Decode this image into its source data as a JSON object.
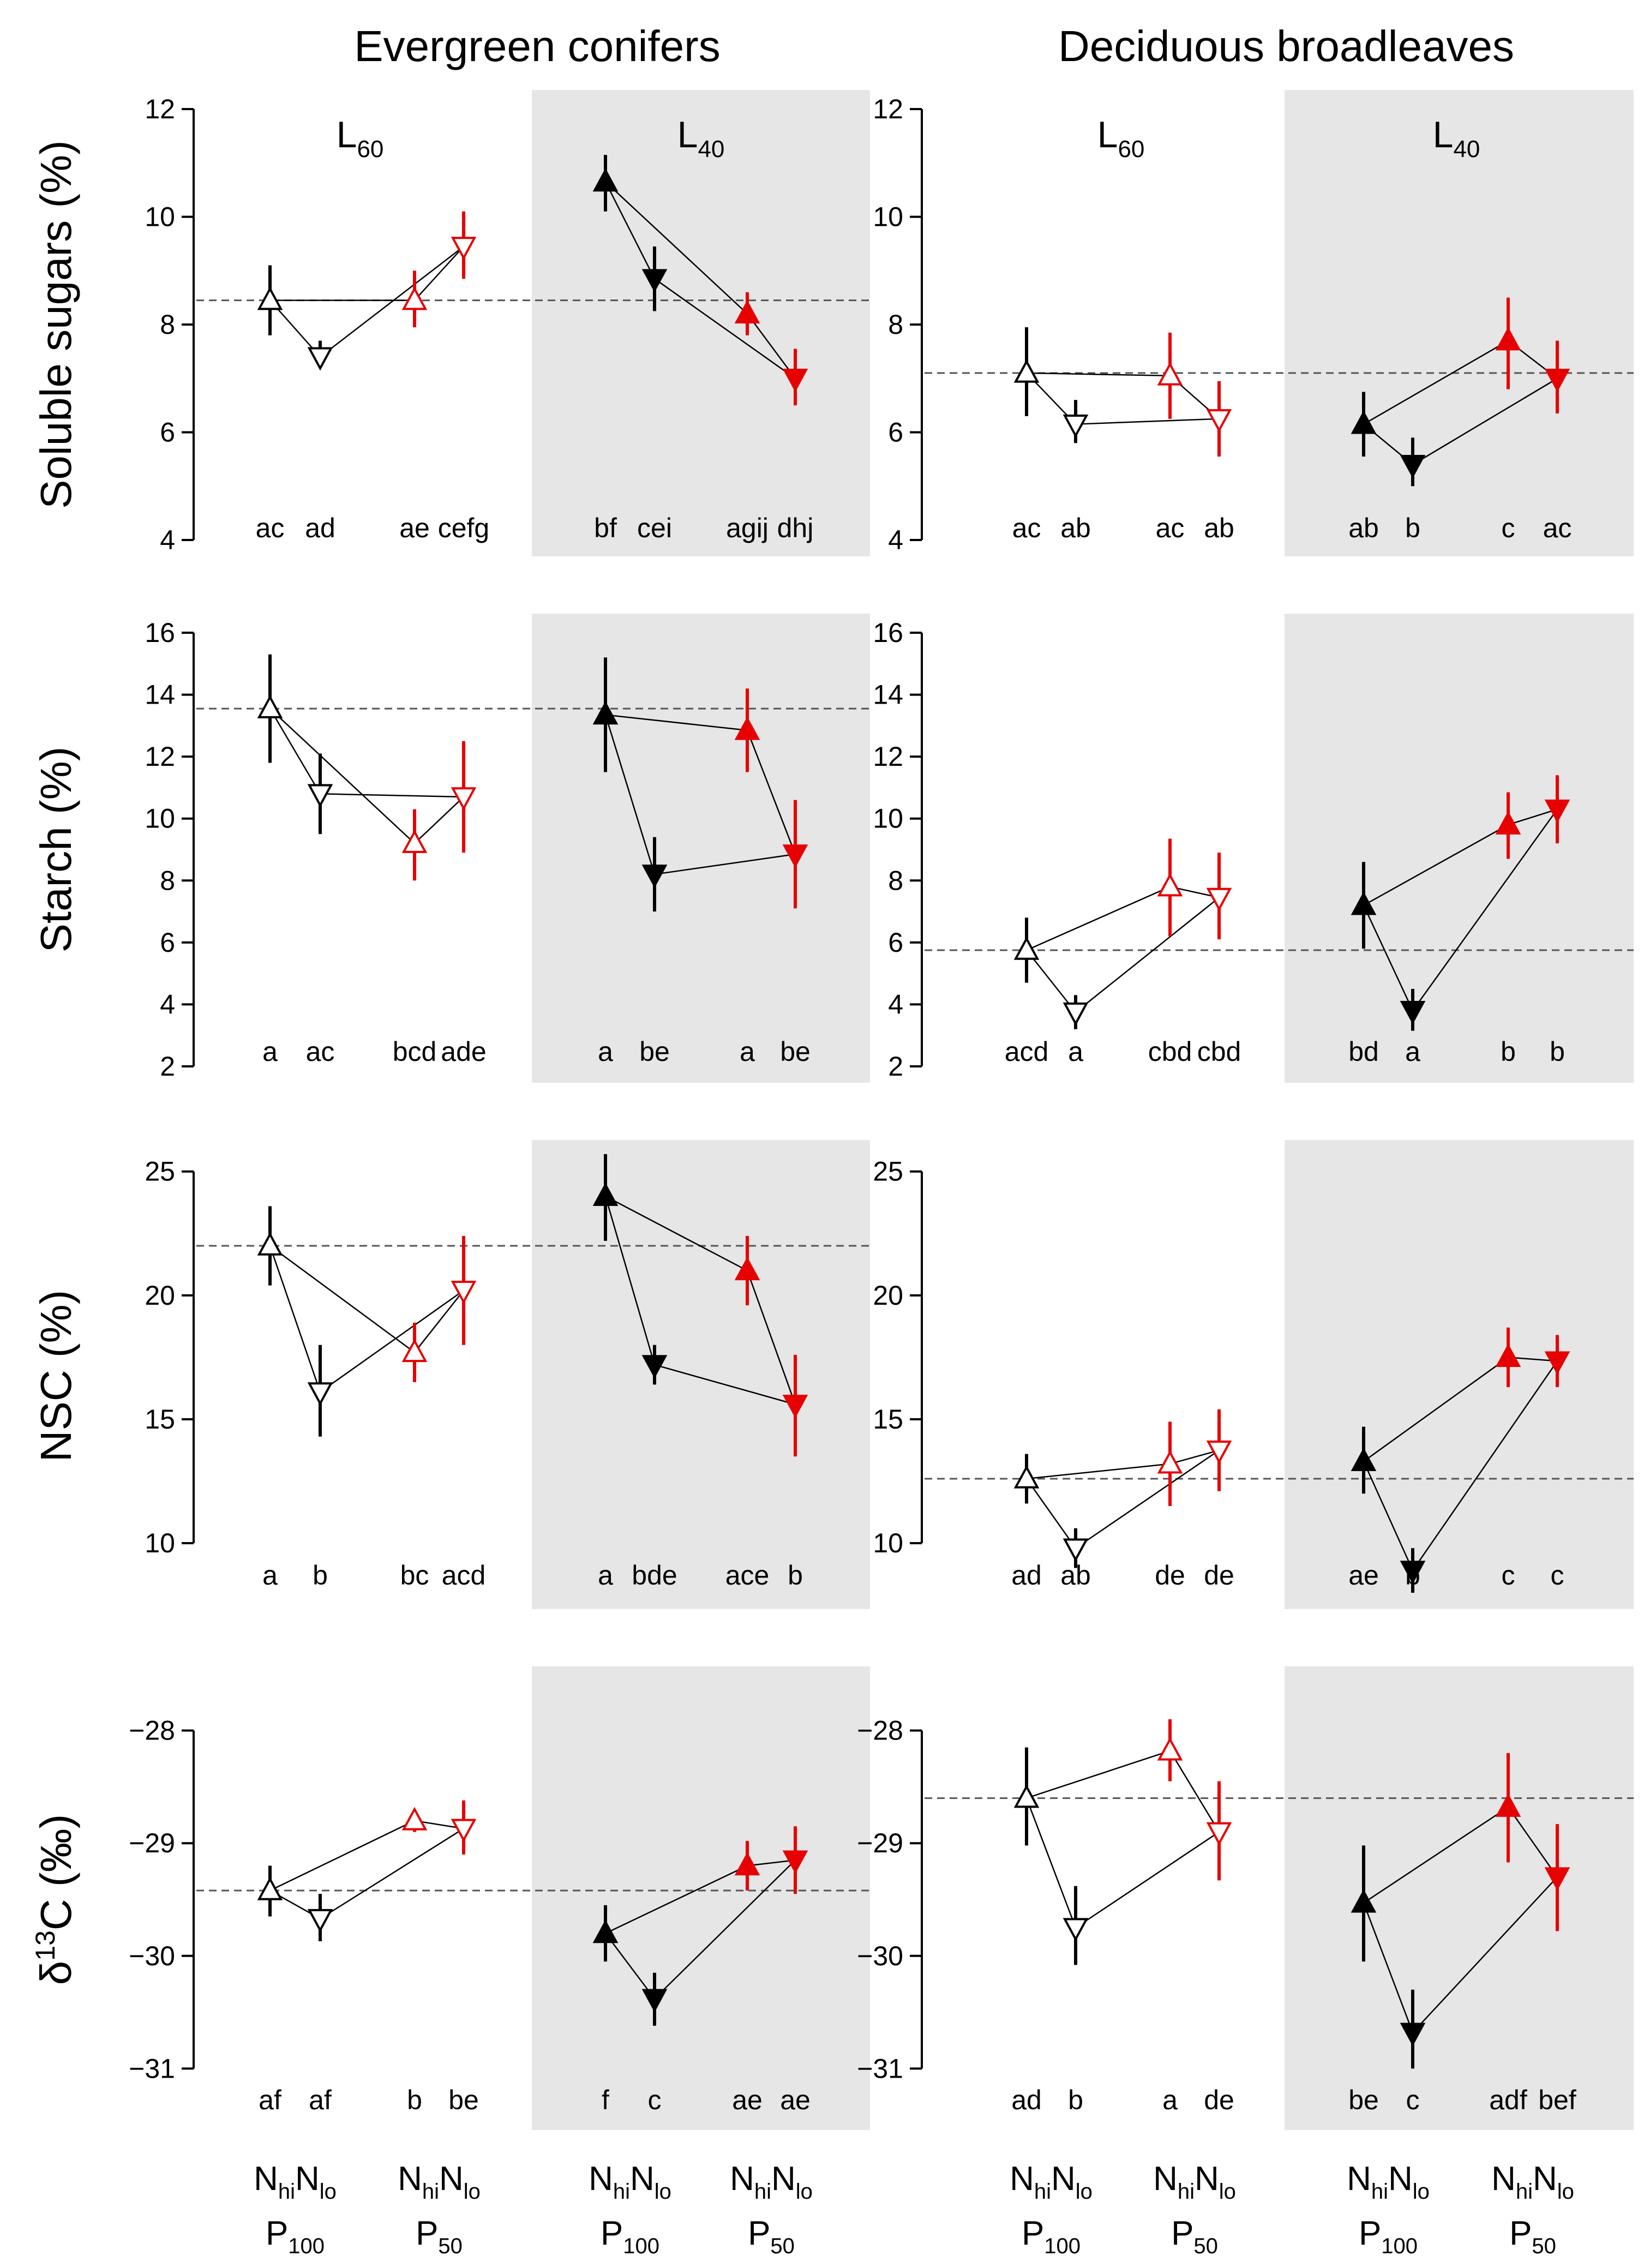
{
  "chart_data": {
    "type": "scatter",
    "columns": [
      "Evergreen conifers",
      "Deciduous broadleaves"
    ],
    "light_levels": [
      {
        "letter": "L",
        "sub": "60"
      },
      {
        "letter": "L",
        "sub": "40"
      }
    ],
    "x_axis": {
      "nitrogen": [
        {
          "letter": "N",
          "sub": "hi"
        },
        {
          "letter": "N",
          "sub": "lo"
        }
      ],
      "phosphorus": [
        {
          "letter": "P",
          "sub": "100"
        },
        {
          "letter": "P",
          "sub": "50"
        }
      ]
    },
    "colors": {
      "p100": "#000000",
      "p50": "#e60000",
      "shade": "#e6e6e6",
      "ref_line": "#555555"
    },
    "marker_legend": {
      "up_triangle": "N hi",
      "down_triangle": "N lo",
      "open_marker": "L60",
      "filled_marker": "L40",
      "black": "P100",
      "red": "P50"
    },
    "rows": [
      {
        "ylabel": "Soluble sugars (%)",
        "ylim": [
          4,
          12
        ],
        "yticks": [
          "4",
          "6",
          "8",
          "10",
          "12"
        ],
        "tick_values": [
          4,
          6,
          8,
          10,
          12
        ],
        "panels": [
          {
            "ref": 8.45,
            "groups": [
              {
                "points": [
                  {
                    "y": 8.45,
                    "lo": 7.8,
                    "hi": 9.1
                  },
                  {
                    "y": 7.4,
                    "lo": 7.2,
                    "hi": 7.7
                  },
                  {
                    "y": 8.45,
                    "lo": 7.95,
                    "hi": 9.0
                  },
                  {
                    "y": 9.45,
                    "lo": 8.85,
                    "hi": 10.1
                  }
                ],
                "letters": [
                  "ac",
                  "ad",
                  "ae",
                  "cefg"
                ]
              },
              {
                "points": [
                  {
                    "y": 10.65,
                    "lo": 10.1,
                    "hi": 11.15
                  },
                  {
                    "y": 8.85,
                    "lo": 8.25,
                    "hi": 9.45
                  },
                  {
                    "y": 8.2,
                    "lo": 7.8,
                    "hi": 8.6
                  },
                  {
                    "y": 7.0,
                    "lo": 6.5,
                    "hi": 7.55
                  }
                ],
                "letters": [
                  "bf",
                  "cei",
                  "agij",
                  "dhj"
                ]
              }
            ]
          },
          {
            "ref": 7.1,
            "groups": [
              {
                "points": [
                  {
                    "y": 7.1,
                    "lo": 6.3,
                    "hi": 7.95
                  },
                  {
                    "y": 6.15,
                    "lo": 5.8,
                    "hi": 6.6
                  },
                  {
                    "y": 7.05,
                    "lo": 6.25,
                    "hi": 7.85
                  },
                  {
                    "y": 6.25,
                    "lo": 5.55,
                    "hi": 6.95
                  }
                ],
                "letters": [
                  "ac",
                  "ab",
                  "ac",
                  "ab"
                ]
              },
              {
                "points": [
                  {
                    "y": 6.15,
                    "lo": 5.55,
                    "hi": 6.75
                  },
                  {
                    "y": 5.4,
                    "lo": 5.0,
                    "hi": 5.9
                  },
                  {
                    "y": 7.7,
                    "lo": 6.8,
                    "hi": 8.5
                  },
                  {
                    "y": 7.0,
                    "lo": 6.35,
                    "hi": 7.7
                  }
                ],
                "letters": [
                  "ab",
                  "b",
                  "c",
                  "ac"
                ]
              }
            ]
          }
        ]
      },
      {
        "ylabel": "Starch (%)",
        "ylim": [
          2,
          16
        ],
        "yticks": [
          "2",
          "4",
          "6",
          "8",
          "10",
          "12",
          "14",
          "16"
        ],
        "tick_values": [
          2,
          4,
          6,
          8,
          10,
          12,
          14,
          16
        ],
        "panels": [
          {
            "ref": 13.55,
            "groups": [
              {
                "points": [
                  {
                    "y": 13.55,
                    "lo": 11.8,
                    "hi": 15.3
                  },
                  {
                    "y": 10.8,
                    "lo": 9.5,
                    "hi": 12.1
                  },
                  {
                    "y": 9.2,
                    "lo": 8.0,
                    "hi": 10.3
                  },
                  {
                    "y": 10.7,
                    "lo": 8.9,
                    "hi": 12.5
                  }
                ],
                "letters": [
                  "a",
                  "ac",
                  "bcd",
                  "ade"
                ]
              },
              {
                "points": [
                  {
                    "y": 13.35,
                    "lo": 11.5,
                    "hi": 15.2
                  },
                  {
                    "y": 8.2,
                    "lo": 7.0,
                    "hi": 9.4
                  },
                  {
                    "y": 12.85,
                    "lo": 11.5,
                    "hi": 14.2
                  },
                  {
                    "y": 8.85,
                    "lo": 7.1,
                    "hi": 10.6
                  }
                ],
                "letters": [
                  "a",
                  "be",
                  "a",
                  "be"
                ]
              }
            ]
          },
          {
            "ref": 5.75,
            "groups": [
              {
                "points": [
                  {
                    "y": 5.75,
                    "lo": 4.7,
                    "hi": 6.8
                  },
                  {
                    "y": 3.75,
                    "lo": 3.2,
                    "hi": 4.3
                  },
                  {
                    "y": 7.8,
                    "lo": 6.2,
                    "hi": 9.35
                  },
                  {
                    "y": 7.45,
                    "lo": 6.1,
                    "hi": 8.9
                  }
                ],
                "letters": [
                  "acd",
                  "a",
                  "cbd",
                  "cbd"
                ]
              },
              {
                "points": [
                  {
                    "y": 7.2,
                    "lo": 5.8,
                    "hi": 8.6
                  },
                  {
                    "y": 3.8,
                    "lo": 3.15,
                    "hi": 4.5
                  },
                  {
                    "y": 9.8,
                    "lo": 8.7,
                    "hi": 10.85
                  },
                  {
                    "y": 10.3,
                    "lo": 9.2,
                    "hi": 11.4
                  }
                ],
                "letters": [
                  "bd",
                  "a",
                  "b",
                  "b"
                ]
              }
            ]
          }
        ]
      },
      {
        "ylabel": "NSC (%)",
        "ylim": [
          8,
          25.5
        ],
        "yticks": [
          "10",
          "15",
          "20",
          "25"
        ],
        "tick_values": [
          10,
          15,
          20,
          25
        ],
        "panels": [
          {
            "ref": 22.0,
            "groups": [
              {
                "points": [
                  {
                    "y": 22.0,
                    "lo": 20.4,
                    "hi": 23.6
                  },
                  {
                    "y": 16.1,
                    "lo": 14.3,
                    "hi": 18.0
                  },
                  {
                    "y": 17.7,
                    "lo": 16.5,
                    "hi": 18.9
                  },
                  {
                    "y": 20.2,
                    "lo": 18.0,
                    "hi": 22.4
                  }
                ],
                "letters": [
                  "a",
                  "b",
                  "bc",
                  "acd"
                ]
              },
              {
                "points": [
                  {
                    "y": 24.0,
                    "lo": 22.2,
                    "hi": 25.7
                  },
                  {
                    "y": 17.2,
                    "lo": 16.4,
                    "hi": 18.0
                  },
                  {
                    "y": 21.0,
                    "lo": 19.6,
                    "hi": 22.4
                  },
                  {
                    "y": 15.6,
                    "lo": 13.5,
                    "hi": 17.6
                  }
                ],
                "letters": [
                  "a",
                  "bde",
                  "ace",
                  "b"
                ]
              }
            ]
          },
          {
            "ref": 12.6,
            "groups": [
              {
                "points": [
                  {
                    "y": 12.6,
                    "lo": 11.6,
                    "hi": 13.6
                  },
                  {
                    "y": 9.8,
                    "lo": 9.0,
                    "hi": 10.6
                  },
                  {
                    "y": 13.2,
                    "lo": 11.5,
                    "hi": 14.9
                  },
                  {
                    "y": 13.75,
                    "lo": 12.1,
                    "hi": 15.4
                  }
                ],
                "letters": [
                  "ad",
                  "ab",
                  "de",
                  "de"
                ]
              },
              {
                "points": [
                  {
                    "y": 13.3,
                    "lo": 12.0,
                    "hi": 14.7
                  },
                  {
                    "y": 8.9,
                    "lo": 8.0,
                    "hi": 9.8
                  },
                  {
                    "y": 17.5,
                    "lo": 16.3,
                    "hi": 18.7
                  },
                  {
                    "y": 17.35,
                    "lo": 16.3,
                    "hi": 18.4
                  }
                ],
                "letters": [
                  "ae",
                  "b",
                  "c",
                  "c"
                ]
              }
            ]
          }
        ]
      },
      {
        "ylabel": "δ13C (‰)",
        "ylabel_parts": {
          "pre": "δ",
          "sup": "13",
          "post": "C (‰)"
        },
        "ylim": [
          -31.4,
          -27.6
        ],
        "yticks": [
          "−31",
          "−30",
          "−29",
          "−28"
        ],
        "tick_values": [
          -31,
          -30,
          -29,
          -28
        ],
        "panels": [
          {
            "ref": -29.42,
            "groups": [
              {
                "points": [
                  {
                    "y": -29.42,
                    "lo": -29.65,
                    "hi": -29.2
                  },
                  {
                    "y": -29.67,
                    "lo": -29.87,
                    "hi": -29.45
                  },
                  {
                    "y": -28.8,
                    "lo": -28.9,
                    "hi": -28.7
                  },
                  {
                    "y": -28.87,
                    "lo": -29.1,
                    "hi": -28.62
                  }
                ],
                "letters": [
                  "af",
                  "af",
                  "b",
                  "be"
                ]
              },
              {
                "points": [
                  {
                    "y": -29.8,
                    "lo": -30.05,
                    "hi": -29.55
                  },
                  {
                    "y": -30.38,
                    "lo": -30.62,
                    "hi": -30.15
                  },
                  {
                    "y": -29.2,
                    "lo": -29.42,
                    "hi": -28.98
                  },
                  {
                    "y": -29.15,
                    "lo": -29.45,
                    "hi": -28.85
                  }
                ],
                "letters": [
                  "f",
                  "c",
                  "ae",
                  "ae"
                ]
              }
            ]
          },
          {
            "ref": -28.6,
            "groups": [
              {
                "points": [
                  {
                    "y": -28.6,
                    "lo": -29.02,
                    "hi": -28.15
                  },
                  {
                    "y": -29.75,
                    "lo": -30.08,
                    "hi": -29.38
                  },
                  {
                    "y": -28.18,
                    "lo": -28.45,
                    "hi": -27.9
                  },
                  {
                    "y": -28.9,
                    "lo": -29.33,
                    "hi": -28.45
                  }
                ],
                "letters": [
                  "ad",
                  "b",
                  "a",
                  "de"
                ]
              },
              {
                "points": [
                  {
                    "y": -29.53,
                    "lo": -30.05,
                    "hi": -29.02
                  },
                  {
                    "y": -30.68,
                    "lo": -31.0,
                    "hi": -30.3
                  },
                  {
                    "y": -28.68,
                    "lo": -29.17,
                    "hi": -28.2
                  },
                  {
                    "y": -29.3,
                    "lo": -29.78,
                    "hi": -28.83
                  }
                ],
                "letters": [
                  "be",
                  "c",
                  "adf",
                  "bef"
                ]
              }
            ]
          }
        ]
      }
    ]
  }
}
